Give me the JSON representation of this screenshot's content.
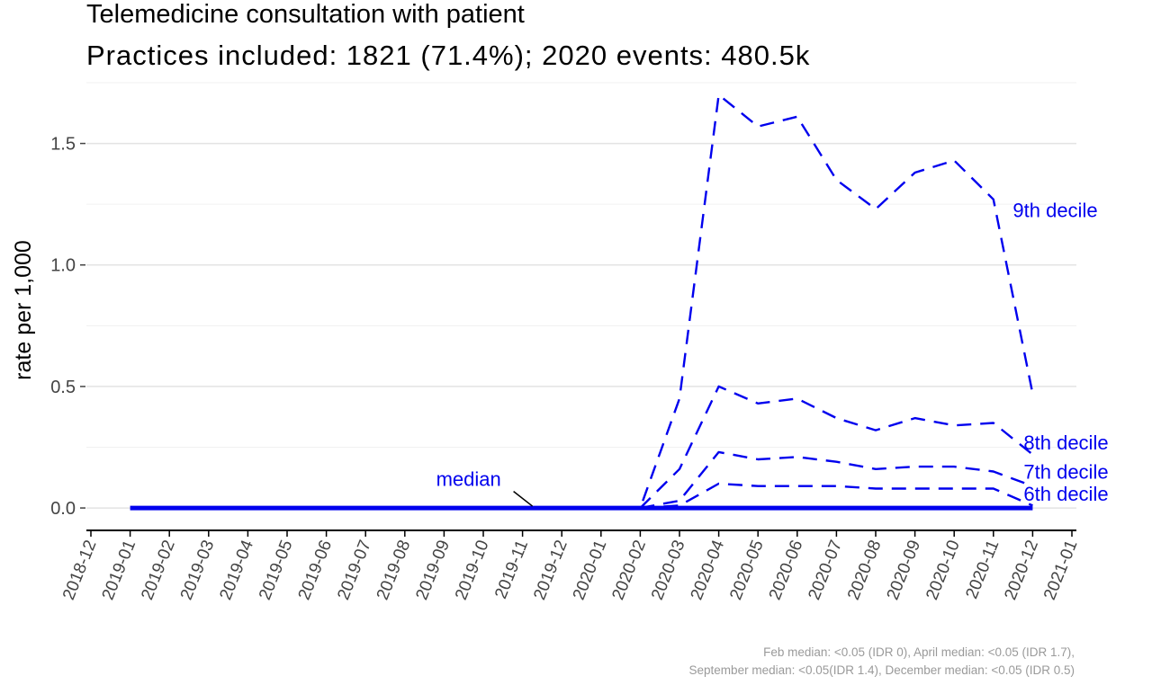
{
  "title": "Telemedicine consultation with patient",
  "subtitle": "Practices included: 1821 (71.4%); 2020 events: 480.5k",
  "caption": [
    "Feb median: <0.05 (IDR 0), April median: <0.05 (IDR 1.7),",
    "September median: <0.05(IDR 1.4), December median: <0.05 (IDR 0.5)"
  ],
  "chart_data": {
    "type": "line",
    "ylabel": "rate per 1,000",
    "xlabel": "",
    "ylim": [
      -0.07,
      1.75
    ],
    "xlim": [
      "2018-12",
      "2021-01"
    ],
    "y_ticks": [
      "0.0",
      "0.5",
      "1.0",
      "1.5"
    ],
    "x_ticks": [
      "2018-12",
      "2019-01",
      "2019-02",
      "2019-03",
      "2019-04",
      "2019-05",
      "2019-06",
      "2019-07",
      "2019-08",
      "2019-09",
      "2019-10",
      "2019-11",
      "2019-12",
      "2020-01",
      "2020-02",
      "2020-03",
      "2020-04",
      "2020-05",
      "2020-06",
      "2020-07",
      "2020-08",
      "2020-09",
      "2020-10",
      "2020-11",
      "2020-12",
      "2021-01"
    ],
    "grid": true,
    "color": "#0000ee",
    "series": [
      {
        "name": "9th decile",
        "style": "dashed",
        "x": [
          "2020-01",
          "2020-02",
          "2020-03",
          "2020-04",
          "2020-05",
          "2020-06",
          "2020-07",
          "2020-08",
          "2020-09",
          "2020-10",
          "2020-11",
          "2020-12"
        ],
        "values": [
          0.0,
          0.0,
          0.45,
          1.7,
          1.57,
          1.61,
          1.35,
          1.23,
          1.38,
          1.43,
          1.27,
          0.47
        ]
      },
      {
        "name": "8th decile",
        "style": "dashed",
        "x": [
          "2020-02",
          "2020-03",
          "2020-04",
          "2020-05",
          "2020-06",
          "2020-07",
          "2020-08",
          "2020-09",
          "2020-10",
          "2020-11",
          "2020-12"
        ],
        "values": [
          0.0,
          0.16,
          0.5,
          0.43,
          0.45,
          0.37,
          0.32,
          0.37,
          0.34,
          0.35,
          0.22
        ]
      },
      {
        "name": "7th decile",
        "style": "dashed",
        "x": [
          "2020-02",
          "2020-03",
          "2020-04",
          "2020-05",
          "2020-06",
          "2020-07",
          "2020-08",
          "2020-09",
          "2020-10",
          "2020-11",
          "2020-12"
        ],
        "values": [
          0.0,
          0.03,
          0.23,
          0.2,
          0.21,
          0.19,
          0.16,
          0.17,
          0.17,
          0.15,
          0.09
        ]
      },
      {
        "name": "6th decile",
        "style": "dashed",
        "x": [
          "2020-02",
          "2020-03",
          "2020-04",
          "2020-05",
          "2020-06",
          "2020-07",
          "2020-08",
          "2020-09",
          "2020-10",
          "2020-11",
          "2020-12"
        ],
        "values": [
          0.0,
          0.01,
          0.1,
          0.09,
          0.09,
          0.09,
          0.08,
          0.08,
          0.08,
          0.08,
          0.01
        ]
      },
      {
        "name": "median",
        "style": "solid",
        "x": [
          "2019-01",
          "2019-02",
          "2019-03",
          "2019-04",
          "2019-05",
          "2019-06",
          "2019-07",
          "2019-08",
          "2019-09",
          "2019-10",
          "2019-11",
          "2019-12",
          "2020-01",
          "2020-02",
          "2020-03",
          "2020-04",
          "2020-05",
          "2020-06",
          "2020-07",
          "2020-08",
          "2020-09",
          "2020-10",
          "2020-11",
          "2020-12"
        ],
        "values": [
          0,
          0,
          0,
          0,
          0,
          0,
          0,
          0,
          0,
          0,
          0,
          0,
          0,
          0,
          0,
          0,
          0,
          0,
          0,
          0,
          0,
          0,
          0,
          0
        ]
      }
    ],
    "labels": [
      {
        "text": "9th decile",
        "x": "2020-12",
        "y": 1.23
      },
      {
        "text": "8th decile",
        "x": "2020-12",
        "y": 0.27
      },
      {
        "text": "7th decile",
        "x": "2020-12",
        "y": 0.15
      },
      {
        "text": "6th decile",
        "x": "2020-12",
        "y": 0.06
      },
      {
        "text": "median",
        "x": "2019-11",
        "y": 0.12
      }
    ]
  }
}
